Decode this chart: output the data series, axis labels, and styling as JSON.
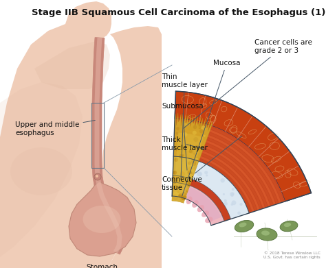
{
  "title": "Stage IIB Squamous Cell Carcinoma of the Esophagus (1)",
  "title_fontsize": 9.5,
  "title_fontweight": "bold",
  "title_color": "#111111",
  "bg_color": "#ffffff",
  "labels": {
    "upper_middle_esophagus": "Upper and middle\nesophagus",
    "stomach": "Stomach",
    "mucosa": "Mucosa",
    "thin_muscle_layer": "Thin\nmuscle layer",
    "submucosa": "Submucosa",
    "thick_muscle_layer": "Thick\nmuscle layer",
    "connective_tissue": "Connective\ntissue",
    "cancer_cells": "Cancer cells are\ngrade 2 or 3"
  },
  "copyright": "© 2018 Terese Winslow LLC\nU.S. Govt. has certain rights",
  "figsize": [
    4.74,
    3.91
  ],
  "dpi": 100,
  "colors": {
    "skin_light": "#f0cdb8",
    "skin_medium": "#e0b8a0",
    "skin_dark": "#c89878",
    "body_bg": "#f5ddd0",
    "esophagus_outer": "#c8877a",
    "esophagus_inner": "#e8b8a8",
    "mucosa_pink": "#f0b8b8",
    "mucosa_outer": "#e8c0c0",
    "submucosa_white": "#dce8f0",
    "submucosa_light": "#e8f0f5",
    "thin_muscle_red": "#d46040",
    "thick_muscle_red": "#c84820",
    "thick_muscle_light": "#e07050",
    "connective_orange": "#c84818",
    "connective_tan": "#d8905a",
    "cancer_yellow": "#d4a030",
    "cancer_light": "#e8c060",
    "lymph_green": "#6a9050",
    "lymph_light": "#8aaa70",
    "white_layer": "#f0f0f0",
    "wedge_border": "#444466"
  }
}
